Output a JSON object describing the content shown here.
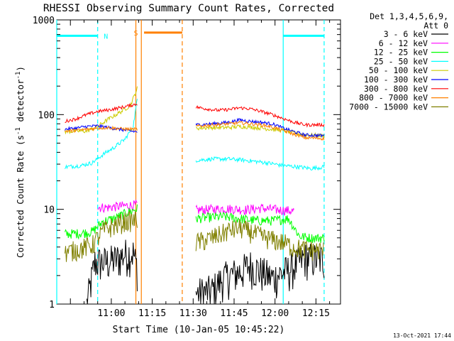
{
  "chart_data": {
    "type": "line",
    "title": "RHESSI Observing Summary Count Rates, Corrected",
    "xlabel": "Start Time (10-Jan-05 10:45:22)",
    "ylabel_main": "Corrected Count Rate (s",
    "ylabel_sup1": "-1",
    "ylabel_mid": " detector",
    "ylabel_sup2": "-1",
    "ylabel_end": ")",
    "y_scale": "log",
    "ylim": [
      1,
      1000
    ],
    "xlim_minutes": [
      -5,
      99
    ],
    "x_ticks": [
      {
        "label": "11:00",
        "minutes": 15
      },
      {
        "label": "11:15",
        "minutes": 30
      },
      {
        "label": "11:30",
        "minutes": 45
      },
      {
        "label": "11:45",
        "minutes": 60
      },
      {
        "label": "12:00",
        "minutes": 75
      },
      {
        "label": "12:15",
        "minutes": 90
      }
    ],
    "y_ticks": [
      {
        "label": "1",
        "value": 1
      },
      {
        "label": "10",
        "value": 10
      },
      {
        "label": "100",
        "value": 100
      },
      {
        "label": "1000",
        "value": 1000
      }
    ],
    "legend_header": [
      "Det 1,3,4,5,6,9,",
      "Att 0"
    ],
    "legend_position": "right",
    "footer_date": "13-Oct-2021 17:44",
    "flags": [
      {
        "label": "N",
        "color": "#00ffff",
        "level": 680,
        "start": -5,
        "end": 10,
        "label_at": 13
      },
      {
        "label": "",
        "color": "#00ffff",
        "level": 680,
        "start": 78,
        "end": 93,
        "label_at": null
      },
      {
        "label": "S",
        "color": "#ff8000",
        "level": 735,
        "start": 27,
        "end": 41,
        "label_at": 24
      }
    ],
    "vlines": [
      {
        "minutes": -5,
        "color": "#00ffff",
        "dash": false
      },
      {
        "minutes": 10,
        "color": "#00ffff",
        "dash": true
      },
      {
        "minutes": 24,
        "color": "#ff8000",
        "dash": false
      },
      {
        "minutes": 26,
        "color": "#ff8000",
        "dash": false
      },
      {
        "minutes": 41,
        "color": "#ff8000",
        "dash": true
      },
      {
        "minutes": 78,
        "color": "#00ffff",
        "dash": false
      },
      {
        "minutes": 93,
        "color": "#00ffff",
        "dash": true
      }
    ],
    "segments": [
      [
        -2,
        24.5
      ],
      [
        46,
        93
      ]
    ],
    "series": [
      {
        "name": "3 - 6 keV",
        "color": "#000000",
        "points": [
          [
            6,
            1.0
          ],
          [
            9,
            2.8
          ],
          [
            13,
            2.8
          ],
          [
            17,
            3.0
          ],
          [
            20,
            3.4
          ],
          [
            23,
            3.5
          ],
          [
            24.5,
            2.4
          ],
          [
            46,
            1.3
          ],
          [
            52,
            1.4
          ],
          [
            56,
            1.9
          ],
          [
            62,
            2.2
          ],
          [
            66,
            2.6
          ],
          [
            70,
            2.2
          ],
          [
            74,
            1.9
          ],
          [
            80,
            2.3
          ],
          [
            86,
            3.1
          ],
          [
            93,
            3.0
          ]
        ],
        "noise": 0.45
      },
      {
        "name": "6 - 12 keV",
        "color": "#ff00ff",
        "points": [
          [
            10,
            10.5
          ],
          [
            14,
            10.5
          ],
          [
            18,
            10.8
          ],
          [
            22,
            11.0
          ],
          [
            24.5,
            11.2
          ],
          [
            46,
            9.8
          ],
          [
            52,
            10.0
          ],
          [
            56,
            10.2
          ],
          [
            60,
            10.1
          ],
          [
            64,
            9.9
          ],
          [
            70,
            10.3
          ],
          [
            74,
            10.0
          ],
          [
            78,
            9.8
          ],
          [
            82,
            9.6
          ]
        ],
        "noise": 0.12
      },
      {
        "name": "12 - 25 keV",
        "color": "#00ff00",
        "points": [
          [
            -2,
            5.5
          ],
          [
            4,
            5.6
          ],
          [
            8,
            5.8
          ],
          [
            12,
            7.5
          ],
          [
            16,
            8.0
          ],
          [
            20,
            9.0
          ],
          [
            24.5,
            10.2
          ],
          [
            46,
            8.0
          ],
          [
            50,
            8.2
          ],
          [
            56,
            8.4
          ],
          [
            62,
            8.0
          ],
          [
            68,
            7.6
          ],
          [
            74,
            7.6
          ],
          [
            80,
            8.0
          ],
          [
            84,
            5.2
          ],
          [
            88,
            5.0
          ],
          [
            93,
            5.0
          ]
        ],
        "noise": 0.12
      },
      {
        "name": "25 - 50 keV",
        "color": "#00ffff",
        "points": [
          [
            -2,
            28
          ],
          [
            4,
            29
          ],
          [
            8,
            31
          ],
          [
            12,
            38
          ],
          [
            16,
            45
          ],
          [
            20,
            55
          ],
          [
            23,
            75
          ],
          [
            24.5,
            145
          ],
          [
            46,
            33
          ],
          [
            52,
            34
          ],
          [
            58,
            34
          ],
          [
            64,
            33
          ],
          [
            68,
            32
          ],
          [
            72,
            31
          ],
          [
            78,
            29
          ],
          [
            84,
            28
          ],
          [
            88,
            27
          ],
          [
            93,
            28
          ]
        ],
        "noise": 0.05
      },
      {
        "name": "50 - 100 keV",
        "color": "#cccc00",
        "points": [
          [
            -2,
            66
          ],
          [
            2,
            67
          ],
          [
            6,
            67
          ],
          [
            10,
            75
          ],
          [
            14,
            90
          ],
          [
            18,
            105
          ],
          [
            22,
            125
          ],
          [
            24.5,
            190
          ],
          [
            46,
            72
          ],
          [
            52,
            73
          ],
          [
            58,
            73
          ],
          [
            62,
            75
          ],
          [
            66,
            74
          ],
          [
            70,
            72
          ],
          [
            74,
            70
          ],
          [
            78,
            68
          ],
          [
            82,
            64
          ],
          [
            86,
            61
          ],
          [
            93,
            60
          ]
        ],
        "noise": 0.05
      },
      {
        "name": "100 - 300 keV",
        "color": "#0000ff",
        "points": [
          [
            -2,
            70
          ],
          [
            2,
            72
          ],
          [
            6,
            75
          ],
          [
            10,
            76
          ],
          [
            14,
            73
          ],
          [
            18,
            70
          ],
          [
            22,
            67
          ],
          [
            24.5,
            66
          ],
          [
            46,
            78
          ],
          [
            52,
            80
          ],
          [
            58,
            83
          ],
          [
            62,
            88
          ],
          [
            66,
            85
          ],
          [
            70,
            83
          ],
          [
            74,
            80
          ],
          [
            78,
            72
          ],
          [
            82,
            66
          ],
          [
            86,
            61
          ],
          [
            93,
            60
          ]
        ],
        "noise": 0.04
      },
      {
        "name": "300 - 800 keV",
        "color": "#ff0000",
        "points": [
          [
            -2,
            85
          ],
          [
            2,
            90
          ],
          [
            6,
            100
          ],
          [
            10,
            108
          ],
          [
            14,
            112
          ],
          [
            18,
            118
          ],
          [
            22,
            125
          ],
          [
            24.5,
            130
          ],
          [
            46,
            120
          ],
          [
            50,
            115
          ],
          [
            54,
            111
          ],
          [
            58,
            113
          ],
          [
            62,
            118
          ],
          [
            66,
            115
          ],
          [
            70,
            108
          ],
          [
            74,
            100
          ],
          [
            78,
            91
          ],
          [
            82,
            83
          ],
          [
            86,
            78
          ],
          [
            93,
            78
          ]
        ],
        "noise": 0.04
      },
      {
        "name": "800 - 7000 keV",
        "color": "#ff8000",
        "points": [
          [
            -2,
            67
          ],
          [
            2,
            68
          ],
          [
            6,
            70
          ],
          [
            10,
            72
          ],
          [
            14,
            73
          ],
          [
            18,
            71
          ],
          [
            22,
            70
          ],
          [
            24.5,
            70
          ],
          [
            46,
            75
          ],
          [
            52,
            78
          ],
          [
            58,
            80
          ],
          [
            62,
            82
          ],
          [
            66,
            80
          ],
          [
            70,
            78
          ],
          [
            74,
            74
          ],
          [
            78,
            68
          ],
          [
            82,
            62
          ],
          [
            86,
            57
          ],
          [
            93,
            56
          ]
        ],
        "noise": 0.04
      },
      {
        "name": "7000 - 15000 keV",
        "color": "#808000",
        "points": [
          [
            -2,
            3.5
          ],
          [
            4,
            3.9
          ],
          [
            8,
            4.2
          ],
          [
            12,
            6.0
          ],
          [
            16,
            6.8
          ],
          [
            20,
            7.5
          ],
          [
            24.5,
            7.8
          ],
          [
            46,
            4.5
          ],
          [
            50,
            4.8
          ],
          [
            54,
            5.3
          ],
          [
            58,
            6.0
          ],
          [
            62,
            6.4
          ],
          [
            66,
            5.8
          ],
          [
            70,
            5.2
          ],
          [
            74,
            4.8
          ],
          [
            78,
            4.5
          ],
          [
            82,
            4.0
          ],
          [
            86,
            3.8
          ],
          [
            93,
            3.7
          ]
        ],
        "noise": 0.25
      }
    ]
  }
}
